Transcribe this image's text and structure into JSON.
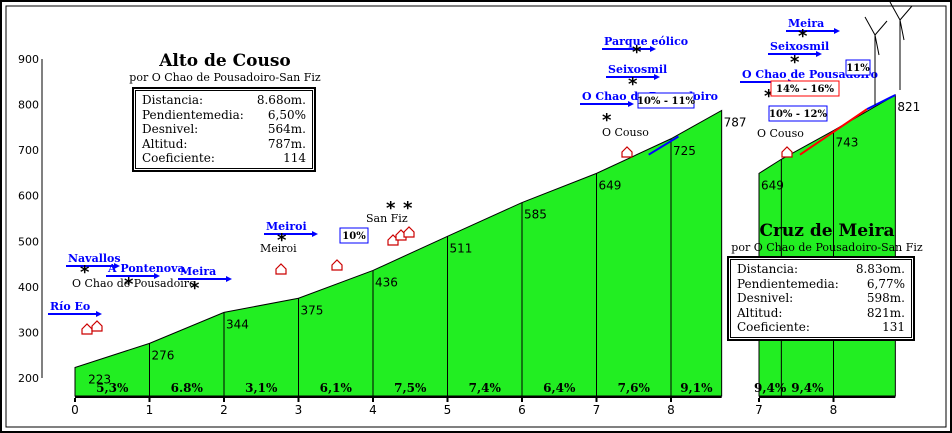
{
  "colors": {
    "fill": "#22ee22",
    "stroke": "#000000",
    "steep": "#ff0000",
    "gentle": "#0000ff",
    "label_blue": "#0000ff"
  },
  "profile1": {
    "title": "Alto de Couso",
    "subtitle": "por  O Chao de Pousadoiro-San Fiz",
    "stats": [
      {
        "label": "Distancia:",
        "value": "8.68om."
      },
      {
        "label": "Pendientemedia:",
        "value": "6,50%"
      },
      {
        "label": "Desnivel:",
        "value": "564m."
      },
      {
        "label": "Altitud:",
        "value": "787m."
      },
      {
        "label": "Coeficiente:",
        "value": "114"
      }
    ]
  },
  "profile2": {
    "title": "Cruz de Meira",
    "subtitle": "por  O Chao de Pousadoiro-San Fiz",
    "stats": [
      {
        "label": "Distancia:",
        "value": "8.83om."
      },
      {
        "label": "Pendientemedia:",
        "value": "6,77%"
      },
      {
        "label": "Desnivel:",
        "value": "598m."
      },
      {
        "label": "Altitud:",
        "value": "821m."
      },
      {
        "label": "Coeficiente:",
        "value": "131"
      }
    ]
  },
  "chart_data": [
    {
      "type": "area",
      "title": "Alto de Couso",
      "ylim": [
        200,
        900
      ],
      "xlim": [
        0,
        8.7
      ],
      "y_ticks": [
        "900",
        "800",
        "700",
        "600",
        "500",
        "400",
        "300",
        "200"
      ],
      "x_ticks": [
        "0",
        "1",
        "2",
        "3",
        "4",
        "5",
        "6",
        "7",
        "8"
      ],
      "profile": [
        [
          0,
          223
        ],
        [
          1,
          276
        ],
        [
          2,
          344
        ],
        [
          3,
          375
        ],
        [
          4,
          436
        ],
        [
          5,
          511
        ],
        [
          6,
          585
        ],
        [
          7,
          649
        ],
        [
          8,
          725
        ],
        [
          8.68,
          787
        ]
      ],
      "point_labels": [
        {
          "x": 0.15,
          "y": 223,
          "text": "223"
        },
        {
          "x": 1,
          "y": 276,
          "text": "276"
        },
        {
          "x": 2,
          "y": 344,
          "text": "344"
        },
        {
          "x": 3,
          "y": 375,
          "text": "375"
        },
        {
          "x": 4,
          "y": 436,
          "text": "436"
        },
        {
          "x": 5,
          "y": 511,
          "text": "511"
        },
        {
          "x": 6,
          "y": 585,
          "text": "585"
        },
        {
          "x": 7,
          "y": 649,
          "text": "649"
        },
        {
          "x": 8,
          "y": 725,
          "text": "725"
        },
        {
          "x": 8.68,
          "y": 787,
          "text": "787"
        }
      ],
      "segment_slopes": [
        "5,3%",
        "6.8%",
        "3,1%",
        "6,1%",
        "7,5%",
        "7,4%",
        "6,4%",
        "7,6%",
        "9,1%"
      ],
      "places": [
        {
          "x": 0,
          "y": 225,
          "name": "Río Eo",
          "blue": true
        },
        {
          "x": 0.15,
          "y": 235,
          "name": "O Chao de Pousadoiro",
          "blue": false
        },
        {
          "x": 0.2,
          "y": 250,
          "name": "Navallos",
          "blue": true
        },
        {
          "x": 0.75,
          "y": 265,
          "name": "A Pontenova",
          "blue": true
        },
        {
          "x": 1.55,
          "y": 300,
          "name": "Meira",
          "blue": true
        },
        {
          "x": 2.7,
          "y": 380,
          "name": "Meiroi",
          "blue": false
        },
        {
          "x": 2.85,
          "y": 380,
          "name": "Meiroi",
          "blue": true
        },
        {
          "x": 4.2,
          "y": 460,
          "name": "San Fiz",
          "blue": false
        },
        {
          "x": 7.45,
          "y": 680,
          "name": "O Couso",
          "blue": false
        },
        {
          "x": 7.3,
          "y": 690,
          "name": "O Chao de Pousadoiro",
          "blue": true
        },
        {
          "x": 7.5,
          "y": 750,
          "name": "Seixosmil",
          "blue": true
        },
        {
          "x": 7.55,
          "y": 790,
          "name": "Parque eólico",
          "blue": true
        }
      ],
      "slope_flags": [
        {
          "x": 3.6,
          "text": "10%"
        },
        {
          "x": 8.0,
          "text": "10% - 11%"
        }
      ]
    },
    {
      "type": "area",
      "title": "Cruz de Meira",
      "ylim": [
        200,
        900
      ],
      "xlim": [
        7,
        8.83
      ],
      "x_ticks": [
        "7",
        "8"
      ],
      "profile": [
        [
          7,
          649
        ],
        [
          7.3,
          680
        ],
        [
          8,
          743
        ],
        [
          8.83,
          821
        ]
      ],
      "point_labels": [
        {
          "x": 7,
          "y": 649,
          "text": "649"
        },
        {
          "x": 8,
          "y": 743,
          "text": "743"
        },
        {
          "x": 8.83,
          "y": 821,
          "text": "821"
        }
      ],
      "segment_slopes": [
        "9,4%",
        "9,4%"
      ],
      "places": [
        {
          "x": 7.3,
          "y": 680,
          "name": "O Couso",
          "blue": false
        },
        {
          "x": 7.2,
          "y": 690,
          "name": "O Chao de Pousadoiro",
          "blue": true
        },
        {
          "x": 7.6,
          "y": 760,
          "name": "Seixosmil",
          "blue": true
        },
        {
          "x": 7.6,
          "y": 800,
          "name": "Meira",
          "blue": true
        }
      ],
      "slope_flags": [
        {
          "x": 7.6,
          "text": "10% - 12%"
        },
        {
          "x": 8.05,
          "text": "14% - 16%"
        },
        {
          "x": 8.35,
          "text": "11%"
        }
      ]
    }
  ]
}
